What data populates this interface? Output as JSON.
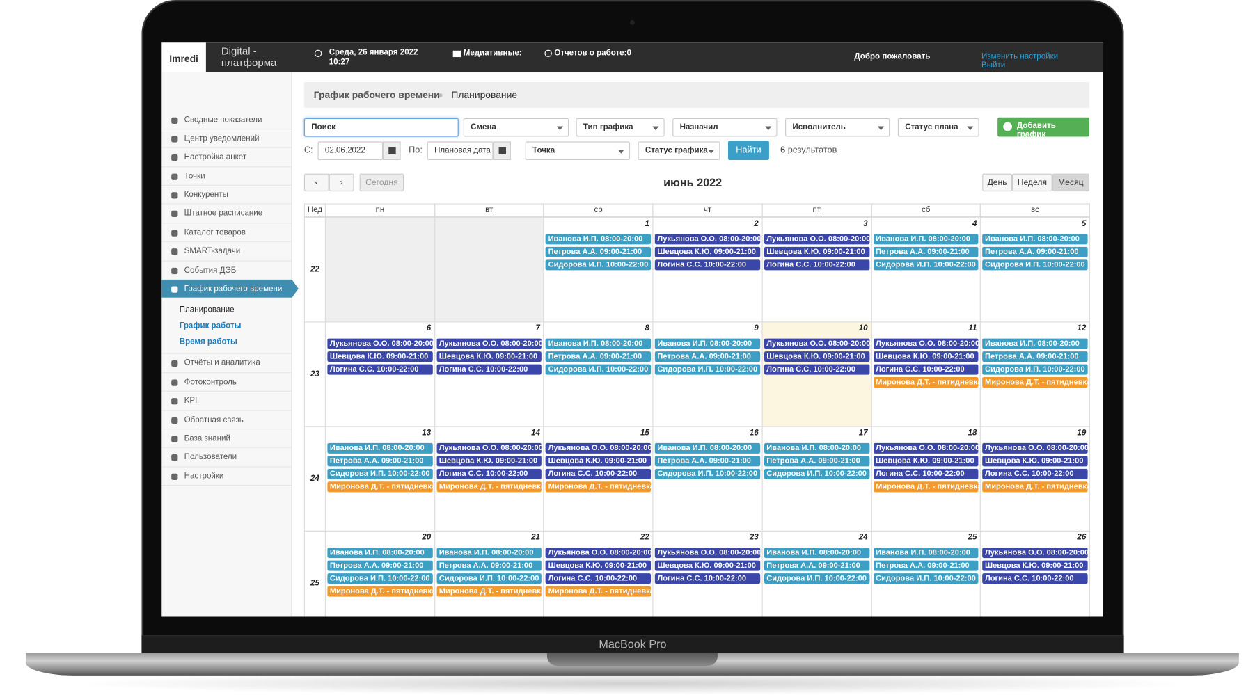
{
  "device": {
    "label": "MacBook Pro"
  },
  "header": {
    "logo": "Imredi",
    "product": "Digital - платформа",
    "datetime": "Среда, 26 января 2022 10:27",
    "media": "Медиативные:",
    "reports": "Отчетов о работе:0",
    "welcome": "Добро пожаловать",
    "links": [
      "Изменить настройки",
      "Выйти"
    ]
  },
  "sidebar": {
    "menu": [
      "Сводные показатели",
      "Центр уведомлений",
      "Настройка анкет",
      "Точки",
      "Конкуренты",
      "Штатное расписание",
      "Каталог товаров",
      "SMART-задачи",
      "События ДЭБ"
    ],
    "active_item": {
      "label": "График рабочего времени",
      "submenu": [
        "Планирование",
        "График работы",
        "Время работы"
      ],
      "active_submenu": 0
    },
    "menu_after": [
      "Отчёты и аналитика",
      "Фотоконтроль",
      "KPI",
      "Обратная связь",
      "База знаний",
      "Пользователи",
      "Настройки"
    ]
  },
  "breadcrumb": [
    "График рабочего времени",
    "Планирование"
  ],
  "filters": {
    "search": "Поиск",
    "shift": "Смена",
    "schedule_type": "Тип графика",
    "assigned_by": "Назначил",
    "executor": "Исполнитель",
    "plan_status": "Статус плана",
    "add_button": "Добавить график",
    "from_label": "С:",
    "from_date": "02.06.2022",
    "to_label": "По:",
    "to_placeholder": "Плановая дата",
    "point": "Точка",
    "schedule_status": "Статус графика",
    "find_button": "Найти",
    "results_count": 6,
    "results_label": "результатов"
  },
  "calendar": {
    "title": "июнь 2022",
    "today_button": "Сегодня",
    "views": [
      "День",
      "Неделя",
      "Месяц"
    ],
    "active_view": 2,
    "week_header": "Нед",
    "weekdays": [
      "пн",
      "вт",
      "ср",
      "чт",
      "пт",
      "сб",
      "вс"
    ],
    "weeks": [
      {
        "number": 22,
        "days": [
          null,
          null,
          {
            "date": 1,
            "events": [
              {
                "text": "Иванова И.П. 08:00-20:00",
                "color": "#3c9fc3"
              },
              {
                "text": "Петрова А.А. 09:00-21:00",
                "color": "#3c9fc3"
              },
              {
                "text": "Сидорова И.П. 10:00-22:00",
                "color": "#3c9fc3"
              }
            ]
          },
          {
            "date": 2,
            "events": [
              {
                "text": "Лукьянова О.О. 08:00-20:00",
                "color": "#3a47a8"
              },
              {
                "text": "Шевцова К.Ю. 09:00-21:00",
                "color": "#3a47a8"
              },
              {
                "text": "Логина С.С. 10:00-22:00",
                "color": "#3a47a8"
              }
            ]
          },
          {
            "date": 3,
            "events": [
              {
                "text": "Лукьянова О.О. 08:00-20:00",
                "color": "#3a47a8"
              },
              {
                "text": "Шевцова К.Ю. 09:00-21:00",
                "color": "#3a47a8"
              },
              {
                "text": "Логина С.С. 10:00-22:00",
                "color": "#3a47a8"
              }
            ]
          },
          {
            "date": 4,
            "events": [
              {
                "text": "Иванова И.П. 08:00-20:00",
                "color": "#3c9fc3"
              },
              {
                "text": "Петрова А.А. 09:00-21:00",
                "color": "#3c9fc3"
              },
              {
                "text": "Сидорова И.П. 10:00-22:00",
                "color": "#3c9fc3"
              }
            ]
          },
          {
            "date": 5,
            "events": [
              {
                "text": "Иванова И.П. 08:00-20:00",
                "color": "#3c9fc3"
              },
              {
                "text": "Петрова А.А. 09:00-21:00",
                "color": "#3c9fc3"
              },
              {
                "text": "Сидорова И.П. 10:00-22:00",
                "color": "#3c9fc3"
              }
            ]
          }
        ]
      },
      {
        "number": 23,
        "days": [
          {
            "date": 6,
            "events": [
              {
                "text": "Лукьянова О.О. 08:00-20:00",
                "color": "#3a47a8"
              },
              {
                "text": "Шевцова К.Ю. 09:00-21:00",
                "color": "#3a47a8"
              },
              {
                "text": "Логина С.С. 10:00-22:00",
                "color": "#3a47a8"
              }
            ]
          },
          {
            "date": 7,
            "events": [
              {
                "text": "Лукьянова О.О. 08:00-20:00",
                "color": "#3a47a8"
              },
              {
                "text": "Шевцова К.Ю. 09:00-21:00",
                "color": "#3a47a8"
              },
              {
                "text": "Логина С.С. 10:00-22:00",
                "color": "#3a47a8"
              }
            ]
          },
          {
            "date": 8,
            "events": [
              {
                "text": "Иванова И.П. 08:00-20:00",
                "color": "#3c9fc3"
              },
              {
                "text": "Петрова А.А. 09:00-21:00",
                "color": "#3c9fc3"
              },
              {
                "text": "Сидорова И.П. 10:00-22:00",
                "color": "#3c9fc3"
              }
            ]
          },
          {
            "date": 9,
            "events": [
              {
                "text": "Иванова И.П. 08:00-20:00",
                "color": "#3c9fc3"
              },
              {
                "text": "Петрова А.А. 09:00-21:00",
                "color": "#3c9fc3"
              },
              {
                "text": "Сидорова И.П. 10:00-22:00",
                "color": "#3c9fc3"
              }
            ]
          },
          {
            "date": 10,
            "highlight": true,
            "events": [
              {
                "text": "Лукьянова О.О. 08:00-20:00",
                "color": "#3a47a8"
              },
              {
                "text": "Шевцова К.Ю. 09:00-21:00",
                "color": "#3a47a8"
              },
              {
                "text": "Логина С.С. 10:00-22:00",
                "color": "#3a47a8"
              }
            ]
          },
          {
            "date": 11,
            "events": [
              {
                "text": "Лукьянова О.О. 08:00-20:00",
                "color": "#3a47a8"
              },
              {
                "text": "Шевцова К.Ю. 09:00-21:00",
                "color": "#3a47a8"
              },
              {
                "text": "Логина С.С. 10:00-22:00",
                "color": "#3a47a8"
              },
              {
                "text": "Миронова Д.Т. - пятидневка",
                "color": "#f29a2e"
              }
            ]
          },
          {
            "date": 12,
            "events": [
              {
                "text": "Иванова И.П. 08:00-20:00",
                "color": "#3c9fc3"
              },
              {
                "text": "Петрова А.А. 09:00-21:00",
                "color": "#3c9fc3"
              },
              {
                "text": "Сидорова И.П. 10:00-22:00",
                "color": "#3c9fc3"
              },
              {
                "text": "Миронова Д.Т. - пятидневка",
                "color": "#f29a2e"
              }
            ]
          }
        ]
      },
      {
        "number": 24,
        "days": [
          {
            "date": 13,
            "events": [
              {
                "text": "Иванова И.П. 08:00-20:00",
                "color": "#3c9fc3"
              },
              {
                "text": "Петрова А.А. 09:00-21:00",
                "color": "#3c9fc3"
              },
              {
                "text": "Сидорова И.П. 10:00-22:00",
                "color": "#3c9fc3"
              },
              {
                "text": "Миронова Д.Т. - пятидневка",
                "color": "#f29a2e"
              }
            ]
          },
          {
            "date": 14,
            "events": [
              {
                "text": "Лукьянова О.О. 08:00-20:00",
                "color": "#3a47a8"
              },
              {
                "text": "Шевцова К.Ю. 09:00-21:00",
                "color": "#3a47a8"
              },
              {
                "text": "Логина С.С. 10:00-22:00",
                "color": "#3a47a8"
              },
              {
                "text": "Миронова Д.Т. - пятидневка",
                "color": "#f29a2e"
              }
            ]
          },
          {
            "date": 15,
            "events": [
              {
                "text": "Лукьянова О.О. 08:00-20:00",
                "color": "#3a47a8"
              },
              {
                "text": "Шевцова К.Ю. 09:00-21:00",
                "color": "#3a47a8"
              },
              {
                "text": "Логина С.С. 10:00-22:00",
                "color": "#3a47a8"
              },
              {
                "text": "Миронова Д.Т. - пятидневка",
                "color": "#f29a2e"
              }
            ]
          },
          {
            "date": 16,
            "events": [
              {
                "text": "Иванова И.П. 08:00-20:00",
                "color": "#3c9fc3"
              },
              {
                "text": "Петрова А.А. 09:00-21:00",
                "color": "#3c9fc3"
              },
              {
                "text": "Сидорова И.П. 10:00-22:00",
                "color": "#3c9fc3"
              }
            ]
          },
          {
            "date": 17,
            "events": [
              {
                "text": "Иванова И.П. 08:00-20:00",
                "color": "#3c9fc3"
              },
              {
                "text": "Петрова А.А. 09:00-21:00",
                "color": "#3c9fc3"
              },
              {
                "text": "Сидорова И.П. 10:00-22:00",
                "color": "#3c9fc3"
              }
            ]
          },
          {
            "date": 18,
            "events": [
              {
                "text": "Лукьянова О.О. 08:00-20:00",
                "color": "#3a47a8"
              },
              {
                "text": "Шевцова К.Ю. 09:00-21:00",
                "color": "#3a47a8"
              },
              {
                "text": "Логина С.С. 10:00-22:00",
                "color": "#3a47a8"
              },
              {
                "text": "Миронова Д.Т. - пятидневка",
                "color": "#f29a2e"
              }
            ]
          },
          {
            "date": 19,
            "events": [
              {
                "text": "Лукьянова О.О. 08:00-20:00",
                "color": "#3a47a8"
              },
              {
                "text": "Шевцова К.Ю. 09:00-21:00",
                "color": "#3a47a8"
              },
              {
                "text": "Логина С.С. 10:00-22:00",
                "color": "#3a47a8"
              },
              {
                "text": "Миронова Д.Т. - пятидневка",
                "color": "#f29a2e"
              }
            ]
          }
        ]
      },
      {
        "number": 25,
        "days": [
          {
            "date": 20,
            "events": [
              {
                "text": "Иванова И.П. 08:00-20:00",
                "color": "#3c9fc3"
              },
              {
                "text": "Петрова А.А. 09:00-21:00",
                "color": "#3c9fc3"
              },
              {
                "text": "Сидорова И.П. 10:00-22:00",
                "color": "#3c9fc3"
              },
              {
                "text": "Миронова Д.Т. - пятидневка",
                "color": "#f29a2e"
              }
            ]
          },
          {
            "date": 21,
            "events": [
              {
                "text": "Иванова И.П. 08:00-20:00",
                "color": "#3c9fc3"
              },
              {
                "text": "Петрова А.А. 09:00-21:00",
                "color": "#3c9fc3"
              },
              {
                "text": "Сидорова И.П. 10:00-22:00",
                "color": "#3c9fc3"
              },
              {
                "text": "Миронова Д.Т. - пятидневка",
                "color": "#f29a2e"
              }
            ]
          },
          {
            "date": 22,
            "events": [
              {
                "text": "Лукьянова О.О. 08:00-20:00",
                "color": "#3a47a8"
              },
              {
                "text": "Шевцова К.Ю. 09:00-21:00",
                "color": "#3a47a8"
              },
              {
                "text": "Логина С.С. 10:00-22:00",
                "color": "#3a47a8"
              },
              {
                "text": "Миронова Д.Т. - пятидневка",
                "color": "#f29a2e"
              }
            ]
          },
          {
            "date": 23,
            "events": [
              {
                "text": "Лукьянова О.О. 08:00-20:00",
                "color": "#3a47a8"
              },
              {
                "text": "Шевцова К.Ю. 09:00-21:00",
                "color": "#3a47a8"
              },
              {
                "text": "Логина С.С. 10:00-22:00",
                "color": "#3a47a8"
              }
            ]
          },
          {
            "date": 24,
            "events": [
              {
                "text": "Иванова И.П. 08:00-20:00",
                "color": "#3c9fc3"
              },
              {
                "text": "Петрова А.А. 09:00-21:00",
                "color": "#3c9fc3"
              },
              {
                "text": "Сидорова И.П. 10:00-22:00",
                "color": "#3c9fc3"
              }
            ]
          },
          {
            "date": 25,
            "events": [
              {
                "text": "Иванова И.П. 08:00-20:00",
                "color": "#3c9fc3"
              },
              {
                "text": "Петрова А.А. 09:00-21:00",
                "color": "#3c9fc3"
              },
              {
                "text": "Сидорова И.П. 10:00-22:00",
                "color": "#3c9fc3"
              }
            ]
          },
          {
            "date": 26,
            "events": [
              {
                "text": "Лукьянова О.О. 08:00-20:00",
                "color": "#3a47a8"
              },
              {
                "text": "Шевцова К.Ю. 09:00-21:00",
                "color": "#3a47a8"
              },
              {
                "text": "Логина С.С. 10:00-22:00",
                "color": "#3a47a8"
              }
            ]
          }
        ]
      }
    ]
  }
}
